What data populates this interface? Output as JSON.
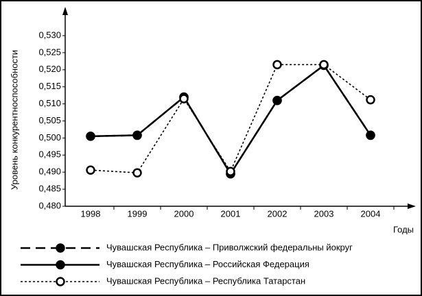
{
  "chart_data": {
    "type": "line",
    "y_label": "Уровень конкурентноспособности",
    "x_label": "Годы",
    "categories": [
      "1998",
      "1999",
      "2000",
      "2001",
      "2002",
      "2003",
      "2004"
    ],
    "series": [
      {
        "name": "Чувашская Республика – Приволжский федеральны йокруг",
        "color": "#000000",
        "style": "dashed",
        "marker": "filled",
        "values": [
          0.5005,
          0.5008,
          0.512,
          0.4895,
          0.511,
          0.5213,
          0.5008
        ]
      },
      {
        "name": "Чувашская Республика – Российская Федерация",
        "color": "#000000",
        "style": "solid",
        "marker": "filled",
        "values": [
          0.5005,
          0.5008,
          0.512,
          0.4895,
          0.511,
          0.5213,
          0.5008
        ]
      },
      {
        "name": "Чувашская Республика – Республика Татарстан",
        "color": "#000000",
        "style": "dotted",
        "marker": "open",
        "values": [
          0.4906,
          0.4898,
          0.5115,
          0.4902,
          0.5215,
          0.5215,
          0.5112
        ]
      }
    ],
    "ylim": [
      0.48,
      0.53
    ],
    "yticks": [
      {
        "value": 0.48,
        "label": "0,480"
      },
      {
        "value": 0.485,
        "label": "0,485"
      },
      {
        "value": 0.49,
        "label": "0,490"
      },
      {
        "value": 0.495,
        "label": "0,495"
      },
      {
        "value": 0.5,
        "label": "0,500"
      },
      {
        "value": 0.505,
        "label": "0,505"
      },
      {
        "value": 0.51,
        "label": "0,510"
      },
      {
        "value": 0.515,
        "label": "0,515"
      },
      {
        "value": 0.52,
        "label": "0,520"
      },
      {
        "value": 0.525,
        "label": "0,525"
      },
      {
        "value": 0.53,
        "label": "0,530"
      }
    ]
  }
}
